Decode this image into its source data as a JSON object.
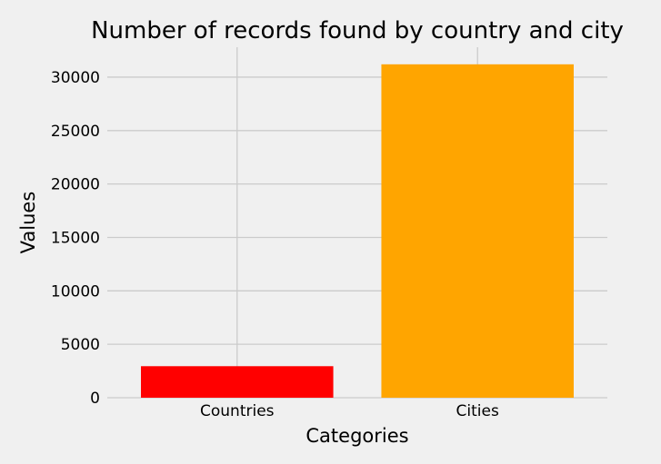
{
  "chart_data": {
    "type": "bar",
    "title": "Number of records found by country and city",
    "xlabel": "Categories",
    "ylabel": "Values",
    "categories": [
      "Countries",
      "Cities"
    ],
    "values": [
      2950,
      31200
    ],
    "colors": [
      "#ff0000",
      "#ffa500"
    ],
    "ylim": [
      0,
      32800
    ],
    "yticks": [
      0,
      5000,
      10000,
      15000,
      20000,
      25000,
      30000
    ],
    "ytick_labels": [
      "0",
      "5000",
      "10000",
      "15000",
      "20000",
      "25000",
      "30000"
    ],
    "grid": true,
    "background": "#f0f0f0",
    "grid_color": "#cbcbcb"
  }
}
